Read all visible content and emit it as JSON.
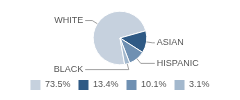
{
  "chart_data": {
    "type": "pie",
    "categories": [
      "WHITE",
      "ASIAN",
      "HISPANIC",
      "BLACK"
    ],
    "values": [
      73.5,
      13.4,
      10.1,
      3.1
    ],
    "value_labels": [
      "73.5%",
      "13.4%",
      "10.1%",
      "3.1%"
    ],
    "colors": [
      "#c6d1de",
      "#2f5a85",
      "#6f90b2",
      "#a3b8cd"
    ],
    "legend": "bottom"
  }
}
